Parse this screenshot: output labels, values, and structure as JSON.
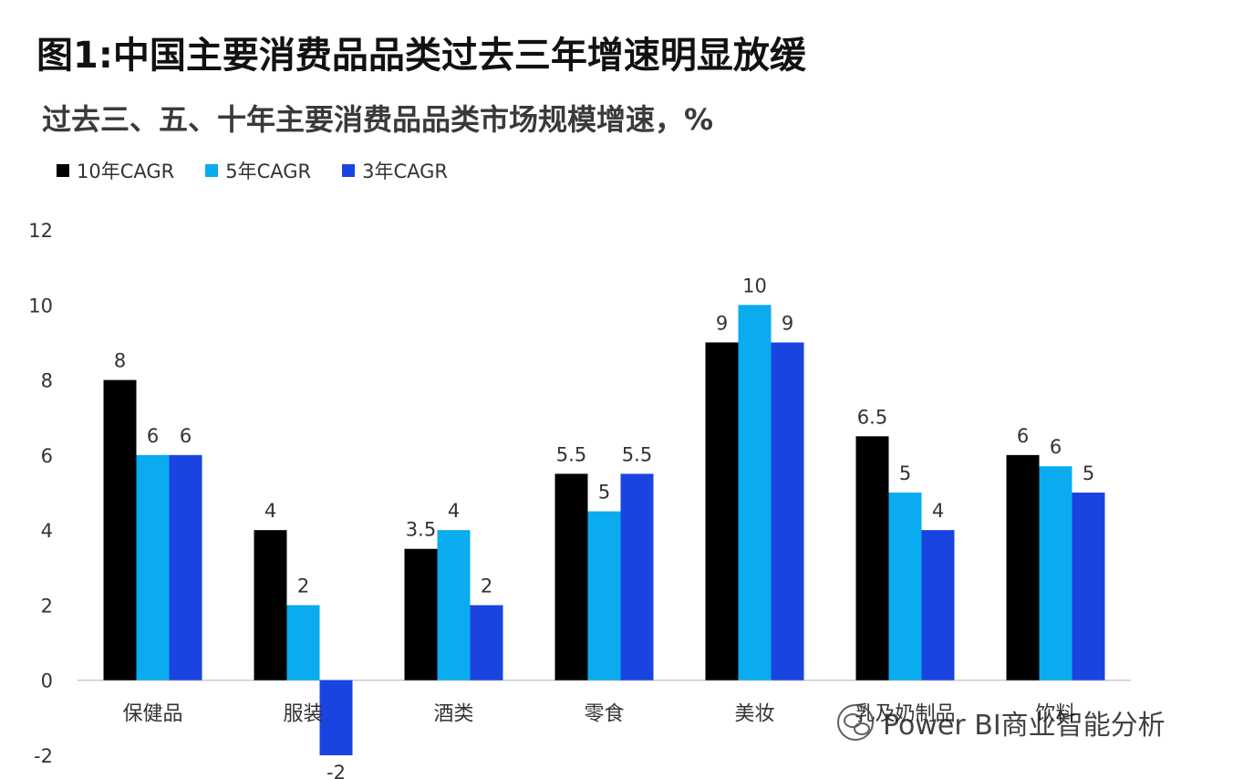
{
  "title": "图1:中国主要消费品品类过去三年增速明显放缓",
  "subtitle": "过去三、五、十年主要消费品品类市场规模增速，%",
  "watermark": "Power BI商业智能分析",
  "colors": {
    "s10": "#000000",
    "s5": "#0aabef",
    "s3": "#1a44e0",
    "axis": "#cccccc",
    "text": "#333333"
  },
  "chart_data": {
    "type": "bar",
    "title": "图1:中国主要消费品品类过去三年增速明显放缓",
    "subtitle": "过去三、五、十年主要消费品品类市场规模增速，%",
    "categories": [
      "保健品",
      "服装",
      "酒类",
      "零食",
      "美妆",
      "乳及奶制品",
      "饮料"
    ],
    "series": [
      {
        "name": "10年CAGR",
        "values": [
          8,
          4,
          3.5,
          5.5,
          9,
          6.5,
          6
        ]
      },
      {
        "name": "5年CAGR",
        "values": [
          6,
          2,
          4,
          4.5,
          10,
          5,
          5.7
        ]
      },
      {
        "name": "3年CAGR",
        "values": [
          6,
          -2,
          2,
          5.5,
          9,
          4,
          5
        ]
      }
    ],
    "data_labels": [
      [
        "8",
        "4",
        "3.5",
        "5.5",
        "9",
        "6.5",
        "6"
      ],
      [
        "6",
        "2",
        "4",
        "5",
        "10",
        "5",
        "6"
      ],
      [
        "6",
        "-2",
        "2",
        "5.5",
        "9",
        "4",
        "5"
      ]
    ],
    "yticks": [
      -2,
      0,
      2,
      4,
      6,
      8,
      10,
      12
    ],
    "ylim": [
      -2,
      12
    ],
    "grid": false,
    "legend_position": "top-left"
  }
}
